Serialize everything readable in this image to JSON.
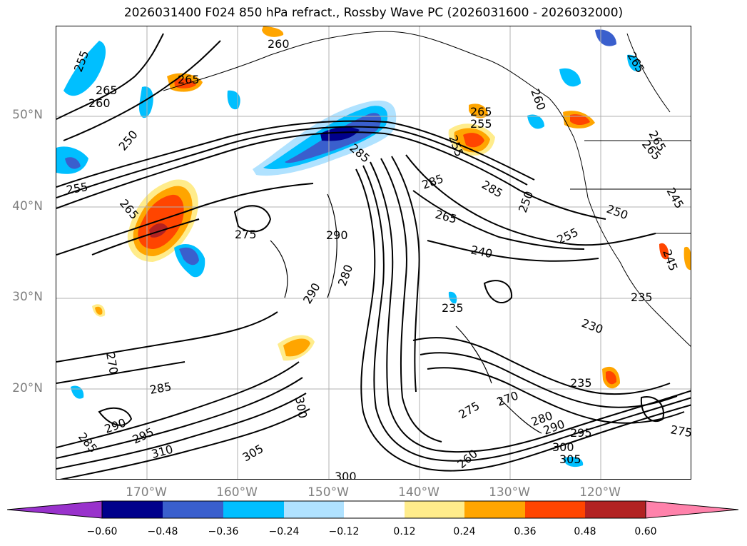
{
  "title": "2026031400 F024 850 hPa refract., Rossby Wave PC (2026031600 - 2026032000)",
  "lat_labels": [
    {
      "text": "50°N",
      "lat": 50
    },
    {
      "text": "40°N",
      "lat": 40
    },
    {
      "text": "30°N",
      "lat": 30
    },
    {
      "text": "20°N",
      "lat": 20
    }
  ],
  "lon_labels": [
    {
      "text": "170°W",
      "lon": -170
    },
    {
      "text": "160°W",
      "lon": -160
    },
    {
      "text": "150°W",
      "lon": -150
    },
    {
      "text": "140°W",
      "lon": -140
    },
    {
      "text": "130°W",
      "lon": -130
    },
    {
      "text": "120°W",
      "lon": -120
    }
  ],
  "map_extent": {
    "lon": [
      -180,
      -110
    ],
    "lat": [
      10,
      60
    ]
  },
  "colorbar": {
    "ticks": [
      "−0.60",
      "−0.48",
      "−0.36",
      "−0.24",
      "−0.12",
      "0.12",
      "0.24",
      "0.36",
      "0.48",
      "0.60"
    ],
    "colors": [
      "#9932cc",
      "#00008b",
      "#3a5fcd",
      "#00bfff",
      "#b0e2ff",
      "#ffffff",
      "#ffec8b",
      "#ffa500",
      "#ff4500",
      "#b22222",
      "#ff82ab"
    ]
  },
  "shading_colors": {
    "neg_light": "#b0e2ff",
    "neg_mid": "#00bfff",
    "neg_strong": "#3a5fcd",
    "neg_max": "#00008b",
    "pos_light": "#ffec8b",
    "pos_mid": "#ffa500",
    "pos_strong": "#ff4500",
    "pos_max": "#b22222"
  },
  "contour_labels": [
    "255",
    "265",
    "260",
    "265",
    "265",
    "260",
    "250",
    "255",
    "265",
    "275",
    "290",
    "285",
    "260",
    "260",
    "265",
    "255",
    "265",
    "285",
    "285",
    "265",
    "240",
    "255",
    "250",
    "265",
    "260",
    "235",
    "230",
    "235",
    "280",
    "290",
    "270",
    "285",
    "290",
    "295",
    "285",
    "310",
    "305",
    "300",
    "300",
    "275",
    "270",
    "235",
    "280",
    "290",
    "295",
    "300",
    "305",
    "260",
    "275",
    "245",
    "255",
    "250",
    "245"
  ]
}
